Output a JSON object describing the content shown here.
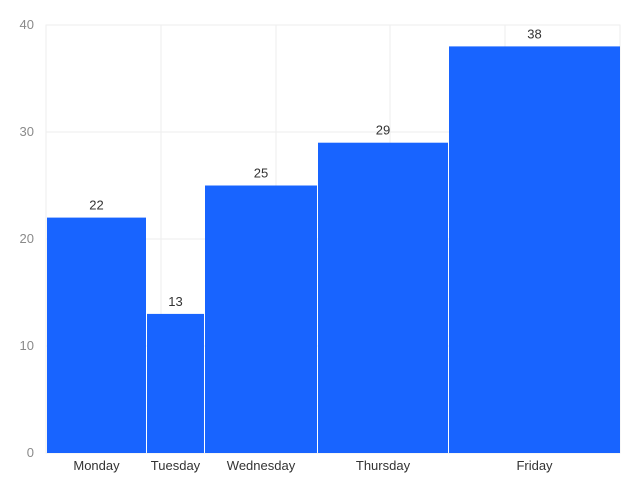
{
  "chart_data": {
    "type": "bar",
    "categories": [
      "Monday",
      "Tuesday",
      "Wednesday",
      "Thursday",
      "Friday"
    ],
    "values": [
      22,
      13,
      25,
      29,
      38
    ],
    "title": "",
    "xlabel": "",
    "ylabel": "",
    "ylim": [
      0,
      40
    ],
    "yticks": [
      0,
      10,
      20,
      30,
      40
    ],
    "grid": true,
    "data_labels": true,
    "bar_color": "#1864ff"
  }
}
